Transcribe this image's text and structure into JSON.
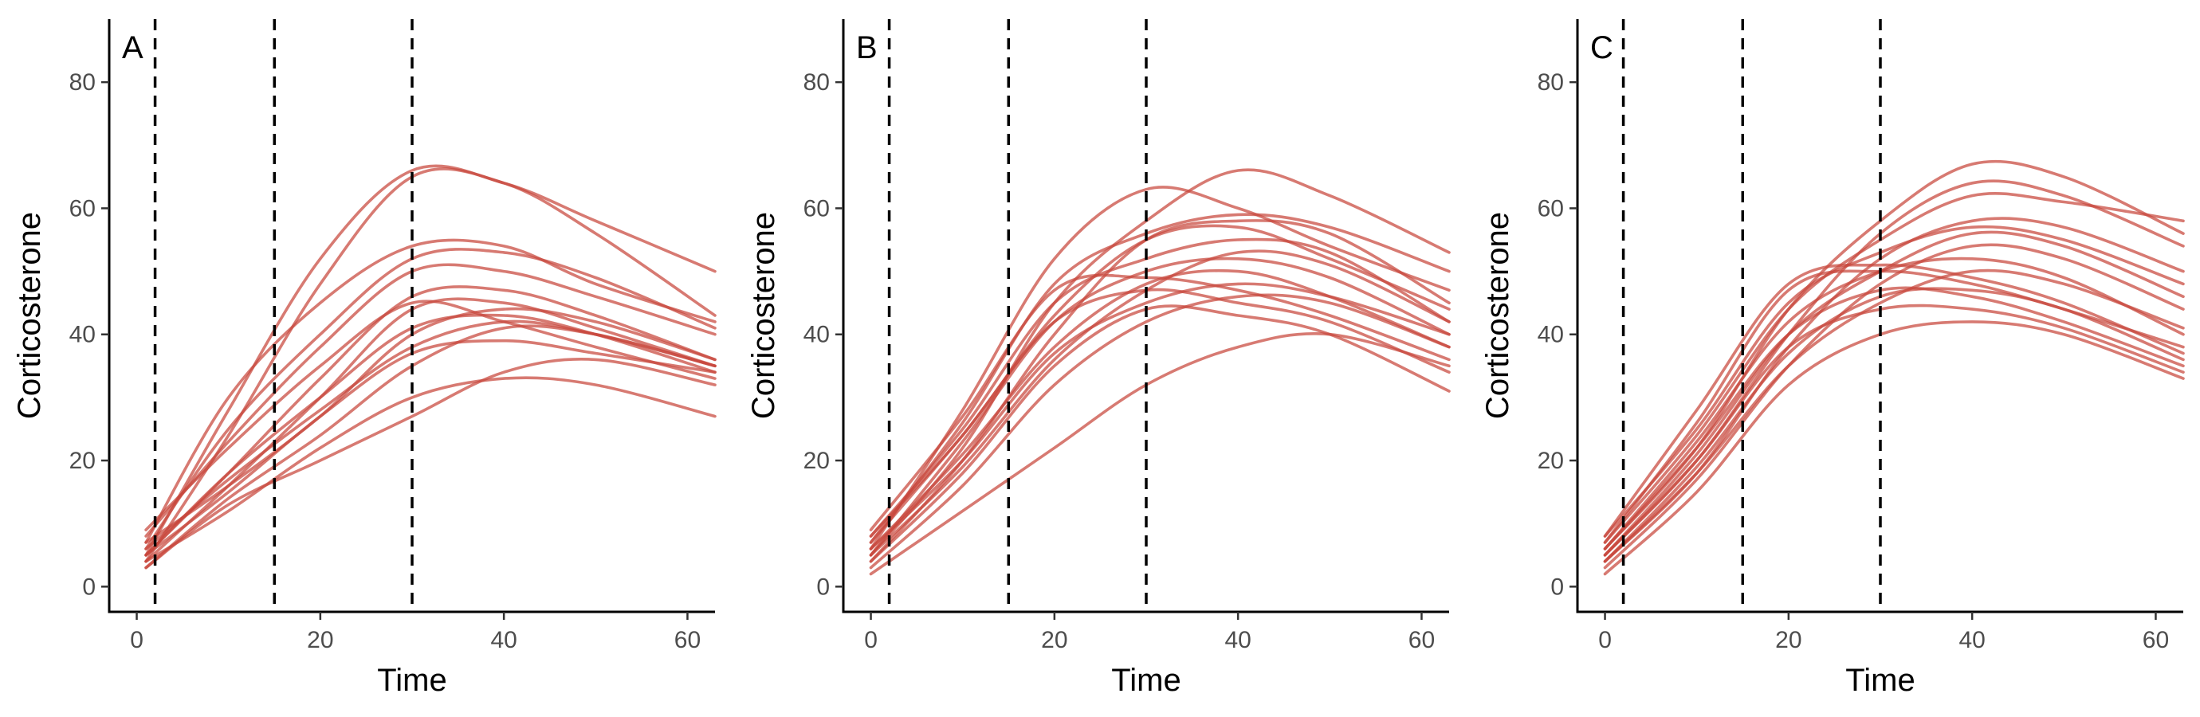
{
  "chart_data": [
    {
      "type": "line",
      "panel_label": "A",
      "xlabel": "Time",
      "ylabel": "Corticosterone",
      "xlim": [
        -3,
        63
      ],
      "ylim": [
        -4,
        90
      ],
      "xticks": [
        0,
        20,
        40,
        60
      ],
      "yticks": [
        0,
        20,
        40,
        60,
        80
      ],
      "grid": false,
      "legend": "none",
      "line_color": "#c8463c",
      "vlines": [
        2,
        15,
        30
      ],
      "x": [
        1,
        10,
        20,
        30,
        40,
        50,
        63
      ],
      "series": [
        {
          "values": [
            5,
            28,
            52,
            66,
            64,
            58,
            50
          ]
        },
        {
          "values": [
            4,
            24,
            48,
            65,
            64,
            56,
            43
          ]
        },
        {
          "values": [
            7,
            30,
            45,
            54,
            54,
            48,
            42
          ]
        },
        {
          "values": [
            6,
            25,
            40,
            52,
            53,
            49,
            41
          ]
        },
        {
          "values": [
            8,
            23,
            38,
            50,
            50,
            46,
            40
          ]
        },
        {
          "values": [
            5,
            18,
            33,
            46,
            47,
            43,
            36
          ]
        },
        {
          "values": [
            4,
            16,
            30,
            44,
            45,
            41,
            35
          ]
        },
        {
          "values": [
            5,
            18,
            30,
            41,
            43,
            40,
            34
          ]
        },
        {
          "values": [
            6,
            17,
            28,
            38,
            42,
            40,
            35
          ]
        },
        {
          "values": [
            3,
            14,
            24,
            35,
            41,
            40,
            35
          ]
        },
        {
          "values": [
            7,
            16,
            27,
            40,
            44,
            42,
            36
          ]
        },
        {
          "values": [
            4,
            12,
            22,
            30,
            33,
            32,
            27
          ]
        },
        {
          "values": [
            3,
            13,
            20,
            27,
            34,
            36,
            32
          ]
        },
        {
          "values": [
            9,
            22,
            35,
            45,
            42,
            38,
            33
          ]
        },
        {
          "values": [
            5,
            15,
            27,
            37,
            39,
            37,
            34
          ]
        }
      ]
    },
    {
      "type": "line",
      "panel_label": "B",
      "xlabel": "Time",
      "ylabel": "Corticosterone",
      "xlim": [
        -3,
        63
      ],
      "ylim": [
        -4,
        90
      ],
      "xticks": [
        0,
        20,
        40,
        60
      ],
      "yticks": [
        0,
        20,
        40,
        60,
        80
      ],
      "grid": false,
      "legend": "none",
      "line_color": "#c8463c",
      "vlines": [
        2,
        15,
        30
      ],
      "x": [
        0,
        10,
        20,
        30,
        40,
        50,
        63
      ],
      "series": [
        {
          "values": [
            6,
            28,
            52,
            63,
            60,
            54,
            47
          ]
        },
        {
          "values": [
            5,
            22,
            45,
            58,
            66,
            62,
            53
          ]
        },
        {
          "values": [
            7,
            26,
            48,
            56,
            59,
            57,
            50
          ]
        },
        {
          "values": [
            4,
            20,
            40,
            55,
            58,
            56,
            45
          ]
        },
        {
          "values": [
            8,
            25,
            45,
            52,
            55,
            53,
            42
          ]
        },
        {
          "values": [
            5,
            23,
            42,
            50,
            52,
            49,
            40
          ]
        },
        {
          "values": [
            6,
            21,
            38,
            48,
            50,
            46,
            38
          ]
        },
        {
          "values": [
            9,
            27,
            47,
            49,
            47,
            43,
            36
          ]
        },
        {
          "values": [
            7,
            24,
            42,
            47,
            45,
            42,
            34
          ]
        },
        {
          "values": [
            4,
            18,
            35,
            44,
            43,
            40,
            31
          ]
        },
        {
          "values": [
            2,
            12,
            22,
            32,
            38,
            40,
            35
          ]
        },
        {
          "values": [
            6,
            20,
            37,
            45,
            48,
            46,
            40
          ]
        },
        {
          "values": [
            5,
            19,
            36,
            47,
            53,
            51,
            42
          ]
        },
        {
          "values": [
            8,
            24,
            43,
            55,
            57,
            52,
            44
          ]
        },
        {
          "values": [
            3,
            16,
            32,
            42,
            46,
            45,
            38
          ]
        }
      ]
    },
    {
      "type": "line",
      "panel_label": "C",
      "xlabel": "Time",
      "ylabel": "Corticosterone",
      "xlim": [
        -3,
        63
      ],
      "ylim": [
        -4,
        90
      ],
      "xticks": [
        0,
        20,
        40,
        60
      ],
      "yticks": [
        0,
        20,
        40,
        60,
        80
      ],
      "grid": false,
      "legend": "none",
      "line_color": "#c8463c",
      "vlines": [
        2,
        15,
        30
      ],
      "x": [
        0,
        10,
        20,
        30,
        40,
        50,
        63
      ],
      "series": [
        {
          "values": [
            6,
            22,
            44,
            58,
            67,
            65,
            56
          ]
        },
        {
          "values": [
            5,
            20,
            40,
            56,
            64,
            62,
            54
          ]
        },
        {
          "values": [
            7,
            24,
            44,
            55,
            62,
            61,
            58
          ]
        },
        {
          "values": [
            4,
            18,
            38,
            52,
            58,
            57,
            50
          ]
        },
        {
          "values": [
            8,
            25,
            45,
            53,
            57,
            55,
            48
          ]
        },
        {
          "values": [
            5,
            21,
            40,
            50,
            56,
            54,
            46
          ]
        },
        {
          "values": [
            3,
            17,
            35,
            48,
            54,
            52,
            44
          ]
        },
        {
          "values": [
            6,
            23,
            42,
            50,
            52,
            49,
            40
          ]
        },
        {
          "values": [
            7,
            26,
            47,
            50,
            48,
            44,
            38
          ]
        },
        {
          "values": [
            4,
            19,
            37,
            46,
            47,
            44,
            36
          ]
        },
        {
          "values": [
            5,
            20,
            38,
            44,
            44,
            41,
            34
          ]
        },
        {
          "values": [
            2,
            15,
            32,
            40,
            42,
            40,
            33
          ]
        },
        {
          "values": [
            6,
            22,
            40,
            47,
            46,
            42,
            35
          ]
        },
        {
          "values": [
            8,
            28,
            48,
            51,
            49,
            45,
            37
          ]
        },
        {
          "values": [
            4,
            18,
            35,
            45,
            50,
            48,
            41
          ]
        }
      ]
    }
  ]
}
